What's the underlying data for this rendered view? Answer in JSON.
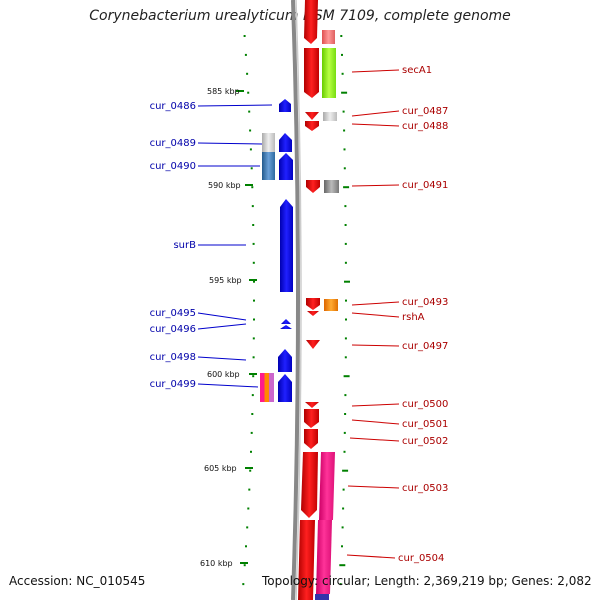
{
  "title": "Corynebacterium urealyticum DSM 7109, complete genome",
  "footer": {
    "accession": "Accession: NC_010545",
    "topology": "Topology: circular; Length: 2,369,219 bp; Genes: 2,082"
  },
  "scale": {
    "labels": [
      "585 kbp",
      "590 kbp",
      "595 kbp",
      "600 kbp",
      "605 kbp",
      "610 kbp"
    ],
    "kbp": [
      585,
      590,
      595,
      600,
      605,
      610
    ]
  },
  "left_genes": [
    {
      "label": "cur_0486",
      "color": "#0000ff"
    },
    {
      "label": "cur_0489",
      "color": "#0000ff"
    },
    {
      "label": "cur_0490",
      "color": "#0000ff"
    },
    {
      "label": "surB",
      "color": "#0000ff"
    },
    {
      "label": "cur_0495",
      "color": "#0000ff"
    },
    {
      "label": "cur_0496",
      "color": "#0000ff"
    },
    {
      "label": "cur_0498",
      "color": "#0000ff"
    },
    {
      "label": "cur_0499",
      "color": "#0000ff"
    }
  ],
  "right_genes": [
    {
      "label": "secA1",
      "color": "#ff0000"
    },
    {
      "label": "cur_0487",
      "color": "#ff0000"
    },
    {
      "label": "cur_0488",
      "color": "#ff0000"
    },
    {
      "label": "cur_0491",
      "color": "#ff0000"
    },
    {
      "label": "cur_0493",
      "color": "#ff0000"
    },
    {
      "label": "rshA",
      "color": "#ff0000"
    },
    {
      "label": "cur_0497",
      "color": "#ff0000"
    },
    {
      "label": "cur_0500",
      "color": "#ff0000"
    },
    {
      "label": "cur_0501",
      "color": "#ff0000"
    },
    {
      "label": "cur_0502",
      "color": "#ff0000"
    },
    {
      "label": "cur_0503",
      "color": "#ff0000"
    },
    {
      "label": "cur_0504",
      "color": "#ff0000"
    }
  ],
  "colors": {
    "forward": "#ff0000",
    "reverse": "#0000ff",
    "cog_green": "#99ff33",
    "cog_orange": "#ff8800",
    "cog_pink": "#ff1a8c",
    "cog_grey": "#888888",
    "cog_steel": "#3c78b4",
    "tick": "#008000",
    "backbone": "#999999"
  }
}
